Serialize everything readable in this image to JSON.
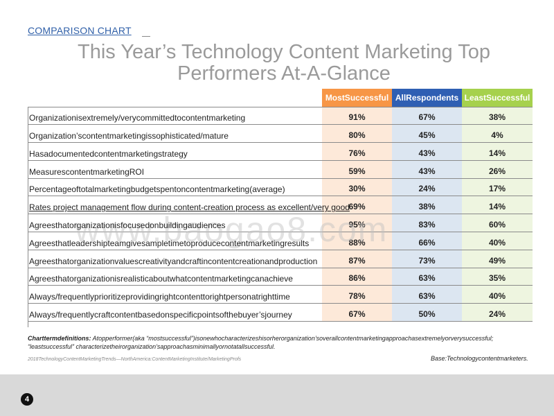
{
  "tag": "COMPARISON CHART",
  "title_line1": "This Year’s Technology Content Marketing Top",
  "title_line2": "Performers At-A-Glance",
  "watermark": "www.baogao8.com",
  "columns": [
    "MostSuccessful",
    "AllRespondents",
    "LeastSuccessful"
  ],
  "rows": [
    {
      "label": "Organizationisextremely/verycommittedtocontentmarketing",
      "most": "91%",
      "all": "67%",
      "least": "38%"
    },
    {
      "label": "Organization’scontentmarketingissophisticated/mature",
      "most": "80%",
      "all": "45%",
      "least": "4%"
    },
    {
      "label": "Hasadocumentedcontentmarketingstrategy",
      "most": "76%",
      "all": "43%",
      "least": "14%"
    },
    {
      "label": "MeasurescontentmarketingROI",
      "most": "59%",
      "all": "43%",
      "least": "26%"
    },
    {
      "label": "Percentageoftotalmarketingbudgetspentoncontentmarketing(average)",
      "most": "30%",
      "all": "24%",
      "least": "17%"
    },
    {
      "label": "Rates project management flow during content-creation process as excellent/very good",
      "most": "69%",
      "all": "38%",
      "least": "14%"
    },
    {
      "label": "Agreesthatorganizationisfocusedonbuildingaudiences",
      "most": "95%",
      "all": "83%",
      "least": "60%"
    },
    {
      "label": "Agreesthatleadershipteamgivesampletimetoproducecontentmarketingresults",
      "most": "88%",
      "all": "66%",
      "least": "40%"
    },
    {
      "label": "Agreesthatorganizationvaluescreativityandcraftincontentcreationandproduction",
      "most": "87%",
      "all": "73%",
      "least": "49%"
    },
    {
      "label": "Agreesthatorganizationisrealisticaboutwhatcontentmarketingcanachieve",
      "most": "86%",
      "all": "63%",
      "least": "35%"
    },
    {
      "label": "Always/frequentlyprioritizeprovidingrightcontenttorightpersonatrighttime",
      "most": "78%",
      "all": "63%",
      "least": "40%"
    },
    {
      "label": "Always/frequentlycraftcontentbasedonspecificpointsofthebuyer’sjourney",
      "most": "67%",
      "all": "50%",
      "least": "24%"
    }
  ],
  "definitions_label": "Charttermdefinitions:",
  "definitions_line1": " Atopperformer(aka “mostsuccessful”)isonewhocharacterizeshisorherorganization’soverallcontentmarketingapproachasextremelyorverysuccessful;",
  "definitions_line2": "“leastsuccessful” characterizetheirorganization’sapproachasminimallyornotatallsuccessful.",
  "source": "2018TechnologyContentMarketingTrends—NorthAmerica:ContentMarketingInstitute/MarketingProfs",
  "base": "Base:Technologycontentmarketers.",
  "page_number": "4"
}
